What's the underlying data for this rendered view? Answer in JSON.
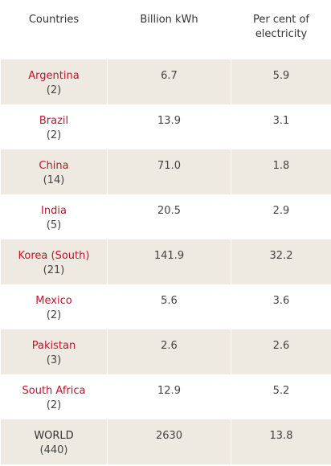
{
  "headers": {
    "countries": "Countries",
    "billion_kwh": "Billion kWh",
    "percent_line1": "Per cent of",
    "percent_line2": "electricity"
  },
  "rows": [
    {
      "country": "Argentina",
      "count": "(2)",
      "bkwh": "6.7",
      "percent": "5.9"
    },
    {
      "country": "Brazil",
      "count": "(2)",
      "bkwh": "13.9",
      "percent": "3.1"
    },
    {
      "country": "China",
      "count": "(14)",
      "bkwh": "71.0",
      "percent": "1.8"
    },
    {
      "country": "India",
      "count": "(5)",
      "bkwh": "20.5",
      "percent": "2.9"
    },
    {
      "country": "Korea (South)",
      "count": "(21)",
      "bkwh": "141.9",
      "percent": "32.2"
    },
    {
      "country": "Mexico",
      "count": "(2)",
      "bkwh": "5.6",
      "percent": "3.6"
    },
    {
      "country": "Pakistan",
      "count": "(3)",
      "bkwh": "2.6",
      "percent": "2.6"
    },
    {
      "country": "South Africa",
      "count": "(2)",
      "bkwh": "12.9",
      "percent": "5.2"
    },
    {
      "country": "WORLD",
      "count": "(440)",
      "bkwh": "2630",
      "percent": "13.8"
    }
  ],
  "colors": {
    "country_link": "#c8102e",
    "shaded_row": "#eeeae1",
    "text": "#333333"
  }
}
